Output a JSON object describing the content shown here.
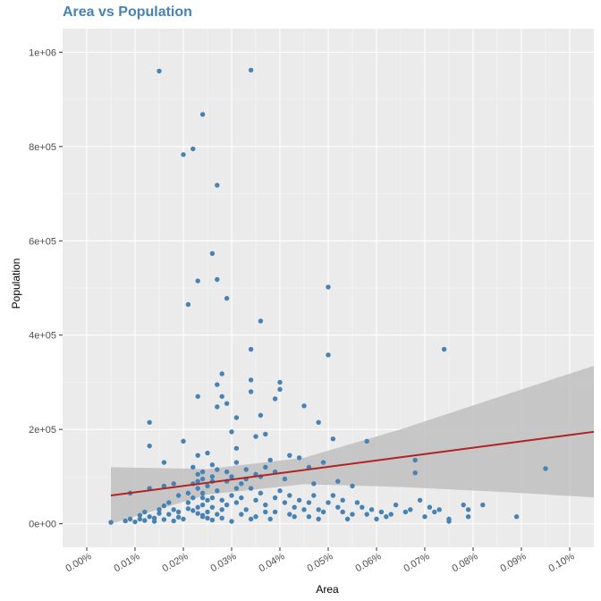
{
  "chart_data": {
    "type": "scatter",
    "title": "Area vs Population",
    "xlabel": "Area",
    "ylabel": "Population",
    "xlim": [
      -5e-05,
      0.00105
    ],
    "ylim": [
      -50000,
      1050000
    ],
    "x_ticks": [
      0,
      0.0001,
      0.0002,
      0.0003,
      0.0004,
      0.0005,
      0.0006,
      0.0007,
      0.0008,
      0.0009,
      0.001
    ],
    "x_tick_labels": [
      "0.00%",
      "0.01%",
      "0.02%",
      "0.03%",
      "0.04%",
      "0.05%",
      "0.06%",
      "0.07%",
      "0.08%",
      "0.09%",
      "0.10%"
    ],
    "y_ticks": [
      0,
      200000,
      400000,
      600000,
      800000,
      1000000
    ],
    "y_tick_labels": [
      "0e+00",
      "2e+05",
      "4e+05",
      "6e+05",
      "8e+05",
      "1e+06"
    ],
    "grid": true,
    "point_color": "#4682B4",
    "trend_color": "#B22222",
    "ribbon_color": "#C0C0C0",
    "panel_color": "#EBEBEB",
    "trend_line": {
      "x": [
        5e-05,
        0.00105
      ],
      "y": [
        60000,
        195000
      ]
    },
    "confidence_band": {
      "x": [
        5e-05,
        0.00025,
        0.00045,
        0.00065,
        0.00085,
        0.00105
      ],
      "lower": [
        0,
        62000,
        84000,
        78000,
        68000,
        56000
      ],
      "upper": [
        120000,
        116000,
        140000,
        200000,
        268000,
        335000
      ]
    },
    "points": [
      [
        5e-05,
        3000
      ],
      [
        9e-05,
        65000
      ],
      [
        0.00013,
        215000
      ],
      [
        0.00013,
        165000
      ],
      [
        0.00015,
        960000
      ],
      [
        0.00016,
        130000
      ],
      [
        0.00013,
        75000
      ],
      [
        0.00016,
        80000
      ],
      [
        0.00018,
        85000
      ],
      [
        0.0002,
        783000
      ],
      [
        0.0002,
        175000
      ],
      [
        0.00021,
        465000
      ],
      [
        0.00022,
        795000
      ],
      [
        0.00023,
        515000
      ],
      [
        0.00024,
        868000
      ],
      [
        0.00023,
        270000
      ],
      [
        0.00023,
        145000
      ],
      [
        0.00022,
        120000
      ],
      [
        0.00025,
        150000
      ],
      [
        0.00026,
        573000
      ],
      [
        0.00027,
        518000
      ],
      [
        0.00027,
        718000
      ],
      [
        0.00027,
        295000
      ],
      [
        0.00028,
        318000
      ],
      [
        0.00027,
        248000
      ],
      [
        0.00028,
        270000
      ],
      [
        0.00029,
        478000
      ],
      [
        0.00029,
        255000
      ],
      [
        0.0003,
        195000
      ],
      [
        0.00031,
        225000
      ],
      [
        0.00031,
        160000
      ],
      [
        0.00034,
        962000
      ],
      [
        0.00034,
        370000
      ],
      [
        0.00034,
        305000
      ],
      [
        0.00034,
        280000
      ],
      [
        0.00035,
        185000
      ],
      [
        0.00036,
        430000
      ],
      [
        0.00036,
        230000
      ],
      [
        0.00037,
        190000
      ],
      [
        0.00039,
        265000
      ],
      [
        0.0004,
        300000
      ],
      [
        0.0004,
        285000
      ],
      [
        0.00042,
        145000
      ],
      [
        0.00045,
        250000
      ],
      [
        0.00046,
        120000
      ],
      [
        0.00048,
        215000
      ],
      [
        0.0005,
        502000
      ],
      [
        0.0005,
        358000
      ],
      [
        0.00051,
        180000
      ],
      [
        0.00058,
        175000
      ],
      [
        0.00068,
        135000
      ],
      [
        0.00068,
        108000
      ],
      [
        0.00074,
        370000
      ],
      [
        0.00095,
        117000
      ],
      [
        0.00049,
        130000
      ],
      [
        0.00044,
        140000
      ],
      [
        0.00038,
        135000
      ],
      [
        0.00031,
        130000
      ],
      [
        0.00026,
        125000
      ],
      [
        0.00033,
        115000
      ],
      [
        0.00029,
        110000
      ],
      [
        0.00023,
        105000
      ],
      [
        0.00036,
        100000
      ],
      [
        0.00041,
        95000
      ],
      [
        0.00052,
        90000
      ],
      [
        0.00047,
        85000
      ],
      [
        0.00055,
        80000
      ],
      [
        0.00034,
        75000
      ],
      [
        0.00027,
        70000
      ],
      [
        0.00021,
        65000
      ],
      [
        0.00019,
        60000
      ],
      [
        0.00024,
        55000
      ],
      [
        0.00028,
        50000
      ],
      [
        0.00031,
        45000
      ],
      [
        0.00037,
        40000
      ],
      [
        0.00043,
        35000
      ],
      [
        0.00048,
        30000
      ],
      [
        0.00053,
        25000
      ],
      [
        0.00058,
        20000
      ],
      [
        0.00062,
        15000
      ],
      [
        0.00067,
        30000
      ],
      [
        0.00069,
        50000
      ],
      [
        0.00071,
        35000
      ],
      [
        0.00073,
        30000
      ],
      [
        0.00075,
        10000
      ],
      [
        0.00078,
        40000
      ],
      [
        0.00079,
        15000
      ],
      [
        0.00082,
        40000
      ],
      [
        0.00089,
        15000
      ],
      [
        0.00079,
        30000
      ],
      [
        0.00075,
        5000
      ],
      [
        0.00064,
        40000
      ],
      [
        0.00061,
        25000
      ],
      [
        0.00057,
        35000
      ],
      [
        0.00054,
        10000
      ],
      [
        0.0005,
        45000
      ],
      [
        0.00046,
        15000
      ],
      [
        0.00042,
        20000
      ],
      [
        0.00039,
        25000
      ],
      [
        0.00035,
        15000
      ],
      [
        0.00032,
        20000
      ],
      [
        0.0003,
        5000
      ],
      [
        0.00028,
        30000
      ],
      [
        0.00026,
        8000
      ],
      [
        0.00025,
        12000
      ],
      [
        0.00024,
        18000
      ],
      [
        0.00023,
        22000
      ],
      [
        0.00022,
        28000
      ],
      [
        0.00021,
        32000
      ],
      [
        0.0002,
        10000
      ],
      [
        0.00019,
        14000
      ],
      [
        0.00018,
        6000
      ],
      [
        0.00017,
        20000
      ],
      [
        0.00016,
        9000
      ],
      [
        0.00015,
        30000
      ],
      [
        0.00014,
        12000
      ],
      [
        0.00012,
        7000
      ],
      [
        0.00011,
        18000
      ],
      [
        0.0001,
        4000
      ],
      [
        9e-05,
        10000
      ],
      [
        8e-05,
        6000
      ],
      [
        0.00024,
        40000
      ],
      [
        0.00026,
        55000
      ],
      [
        0.00025,
        80000
      ],
      [
        0.00024,
        95000
      ],
      [
        0.00023,
        35000
      ],
      [
        0.00025,
        25000
      ],
      [
        0.00024,
        15000
      ],
      [
        0.00026,
        35000
      ],
      [
        0.00025,
        50000
      ],
      [
        0.00024,
        65000
      ],
      [
        0.00023,
        75000
      ],
      [
        0.00026,
        90000
      ],
      [
        0.00027,
        20000
      ],
      [
        0.00028,
        12000
      ],
      [
        0.00029,
        40000
      ],
      [
        0.0003,
        60000
      ],
      [
        0.00031,
        75000
      ],
      [
        0.00032,
        55000
      ],
      [
        0.00033,
        30000
      ],
      [
        0.00034,
        10000
      ],
      [
        0.00035,
        50000
      ],
      [
        0.00036,
        65000
      ],
      [
        0.00037,
        25000
      ],
      [
        0.00038,
        10000
      ],
      [
        0.00039,
        55000
      ],
      [
        0.0004,
        70000
      ],
      [
        0.00041,
        45000
      ],
      [
        0.00042,
        60000
      ],
      [
        0.00043,
        15000
      ],
      [
        0.00044,
        50000
      ],
      [
        0.00045,
        30000
      ],
      [
        0.00046,
        45000
      ],
      [
        0.00047,
        60000
      ],
      [
        0.00048,
        10000
      ],
      [
        0.00049,
        25000
      ],
      [
        0.00051,
        60000
      ],
      [
        0.00052,
        35000
      ],
      [
        0.00053,
        50000
      ],
      [
        0.00055,
        20000
      ],
      [
        0.00056,
        45000
      ],
      [
        0.00059,
        30000
      ],
      [
        0.0006,
        10000
      ],
      [
        0.00063,
        20000
      ],
      [
        0.00066,
        25000
      ],
      [
        0.0007,
        15000
      ],
      [
        0.00072,
        25000
      ],
      [
        0.00019,
        25000
      ],
      [
        0.00021,
        45000
      ],
      [
        0.00022,
        55000
      ],
      [
        0.00022,
        85000
      ],
      [
        0.00023,
        90000
      ],
      [
        0.00024,
        110000
      ],
      [
        0.00026,
        100000
      ],
      [
        0.00027,
        115000
      ],
      [
        0.00029,
        90000
      ],
      [
        0.0003,
        100000
      ],
      [
        0.00032,
        85000
      ],
      [
        0.00033,
        95000
      ],
      [
        0.00035,
        105000
      ],
      [
        0.00037,
        120000
      ],
      [
        0.00039,
        110000
      ],
      [
        0.00017,
        45000
      ],
      [
        0.00016,
        38000
      ],
      [
        0.00018,
        30000
      ],
      [
        0.00015,
        22000
      ],
      [
        0.00013,
        15000
      ],
      [
        0.00012,
        25000
      ],
      [
        0.00011,
        10000
      ],
      [
        0.00014,
        5000
      ]
    ]
  }
}
